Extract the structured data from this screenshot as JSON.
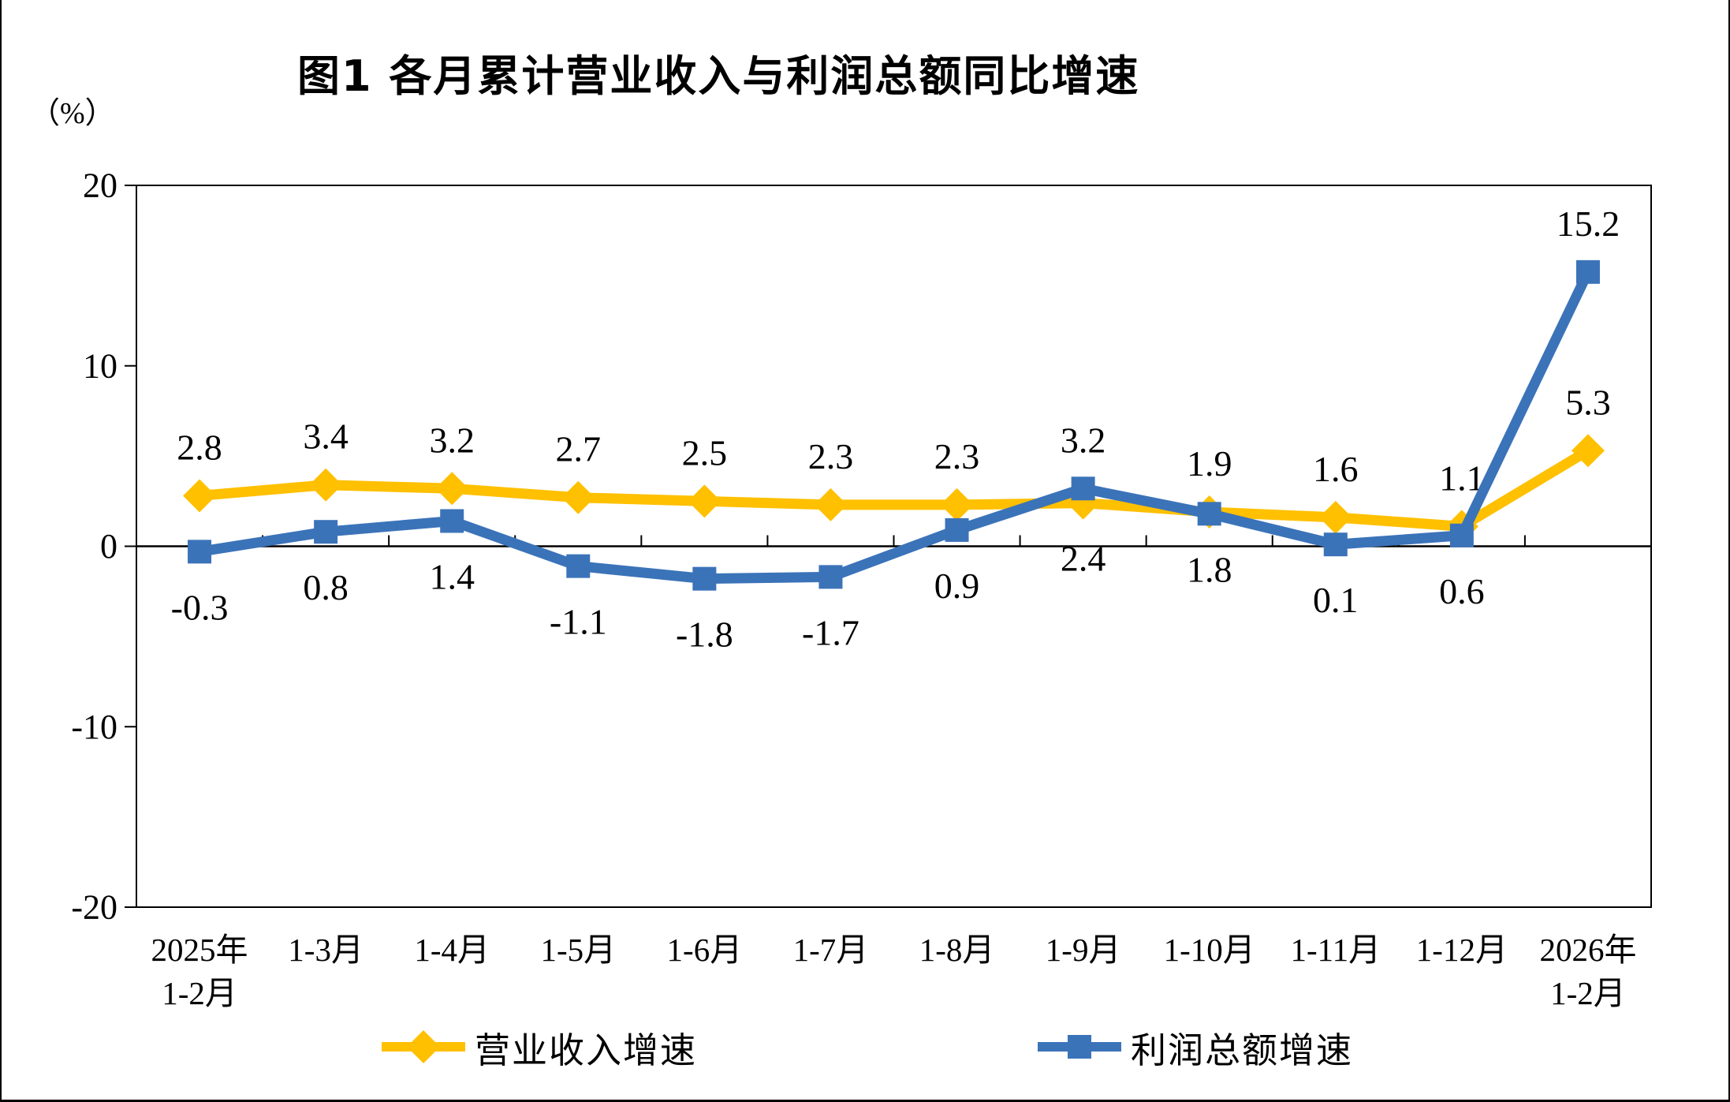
{
  "figure": {
    "title": "图1  各月累计营业收入与利润总额同比增速",
    "y_axis_unit": "（%）"
  },
  "chart_data": {
    "type": "line",
    "title": "图1  各月累计营业收入与利润总额同比增速",
    "ylabel": "（%）",
    "ylim": [
      -20,
      20
    ],
    "y_ticks": [
      20,
      10,
      0,
      -10,
      -20
    ],
    "grid": false,
    "legend_position": "bottom",
    "axis_color": "#000000",
    "categories": [
      [
        "2025年",
        "1-2月"
      ],
      [
        "1-3月"
      ],
      [
        "1-4月"
      ],
      [
        "1-5月"
      ],
      [
        "1-6月"
      ],
      [
        "1-7月"
      ],
      [
        "1-8月"
      ],
      [
        "1-9月"
      ],
      [
        "1-10月"
      ],
      [
        "1-11月"
      ],
      [
        "1-12月"
      ],
      [
        "2026年",
        "1-2月"
      ]
    ],
    "series": [
      {
        "name": "营业收入增速",
        "color": "#FFC000",
        "marker": "diamond",
        "values": [
          2.8,
          3.4,
          3.2,
          2.7,
          2.5,
          2.3,
          2.3,
          2.4,
          1.9,
          1.6,
          1.1,
          5.3
        ],
        "labels": [
          "2.8",
          "3.4",
          "3.2",
          "2.7",
          "2.5",
          "2.3",
          "2.3",
          "2.4",
          "1.9",
          "1.6",
          "1.1",
          "5.3"
        ],
        "label_side": [
          "above",
          "above",
          "above",
          "above",
          "above",
          "above",
          "above",
          "below",
          "above",
          "above",
          "above",
          "above"
        ]
      },
      {
        "name": "利润总额增速",
        "color": "#3B73B9",
        "marker": "square",
        "values": [
          -0.3,
          0.8,
          1.4,
          -1.1,
          -1.8,
          -1.7,
          0.9,
          3.2,
          1.8,
          0.1,
          0.6,
          15.2
        ],
        "labels": [
          "-0.3",
          "0.8",
          "1.4",
          "-1.1",
          "-1.8",
          "-1.7",
          "0.9",
          "3.2",
          "1.8",
          "0.1",
          "0.6",
          "15.2"
        ],
        "label_side": [
          "below",
          "below",
          "below",
          "below",
          "below",
          "below",
          "below",
          "above",
          "below",
          "below",
          "below",
          "above"
        ]
      }
    ]
  }
}
